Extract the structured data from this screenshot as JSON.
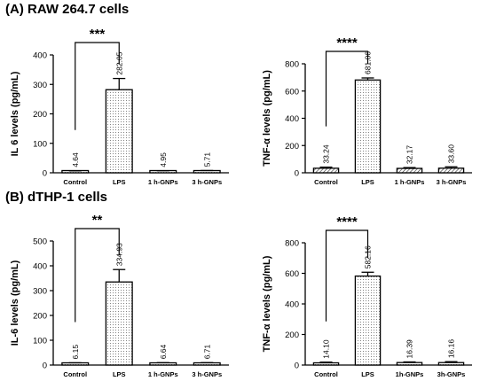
{
  "sections": {
    "a": "(A) RAW 264.7 cells",
    "b": "(B) dTHP-1 cells"
  },
  "chart_data": [
    {
      "id": "raw-il6",
      "type": "bar",
      "ylabel": "IL 6 levels (pg/mL)",
      "ylim": [
        0,
        400
      ],
      "yticks": [
        0,
        100,
        200,
        300,
        400
      ],
      "categories": [
        "Control",
        "LPS",
        "1 h-GNPs",
        "3 h-GNPs"
      ],
      "values": [
        4.64,
        282.05,
        4.95,
        5.71
      ],
      "value_labels": [
        "4.64",
        "282.05",
        "4.95",
        "5.71"
      ],
      "errors": [
        2,
        38,
        2,
        2
      ],
      "patterns": [
        "dots",
        "dots",
        "dots",
        "dots"
      ],
      "significance": {
        "from": 0,
        "to": 1,
        "label": "***"
      }
    },
    {
      "id": "raw-tnf",
      "type": "bar",
      "ylabel": "TNF-α levels (pg/mL)",
      "ylim": [
        0,
        800
      ],
      "yticks": [
        0,
        200,
        400,
        600,
        800
      ],
      "categories": [
        "Control",
        "LPS",
        "1 h-GNPs",
        "3 h-GNPs"
      ],
      "values": [
        33.24,
        681.06,
        32.17,
        33.6
      ],
      "value_labels": [
        "33.24",
        "681.06",
        "32.17",
        "33.60"
      ],
      "errors": [
        8,
        15,
        6,
        10
      ],
      "patterns": [
        "hatch",
        "dots",
        "hatch",
        "hatch"
      ],
      "significance": {
        "from": 0,
        "to": 1,
        "label": "****"
      }
    },
    {
      "id": "thp-il6",
      "type": "bar",
      "ylabel": "IL-6 levels (pg/mL)",
      "ylim": [
        0,
        500
      ],
      "yticks": [
        0,
        100,
        200,
        300,
        400,
        500
      ],
      "categories": [
        "Control",
        "LPS",
        "1 h-GNPs",
        "3 h-GNPs"
      ],
      "values": [
        6.15,
        334.93,
        6.64,
        6.71
      ],
      "value_labels": [
        "6.15",
        "334.93",
        "6.64",
        "6.71"
      ],
      "errors": [
        3,
        50,
        3,
        3
      ],
      "patterns": [
        "dots",
        "dots",
        "dots",
        "dots"
      ],
      "significance": {
        "from": 0,
        "to": 1,
        "label": "**"
      }
    },
    {
      "id": "thp-tnf",
      "type": "bar",
      "ylabel": "TNF-α levels (pg/mL)",
      "ylim": [
        0,
        800
      ],
      "yticks": [
        0,
        200,
        400,
        600,
        800
      ],
      "categories": [
        "Control",
        "LPS",
        "1h-GNPs",
        "3h-GNPs"
      ],
      "values": [
        14.1,
        582.16,
        16.39,
        16.16
      ],
      "value_labels": [
        "14.10",
        "582.16",
        "16.39",
        "16.16"
      ],
      "errors": [
        5,
        25,
        4,
        6
      ],
      "patterns": [
        "dots",
        "dots",
        "dots",
        "dots"
      ],
      "significance": {
        "from": 0,
        "to": 1,
        "label": "****"
      }
    }
  ]
}
